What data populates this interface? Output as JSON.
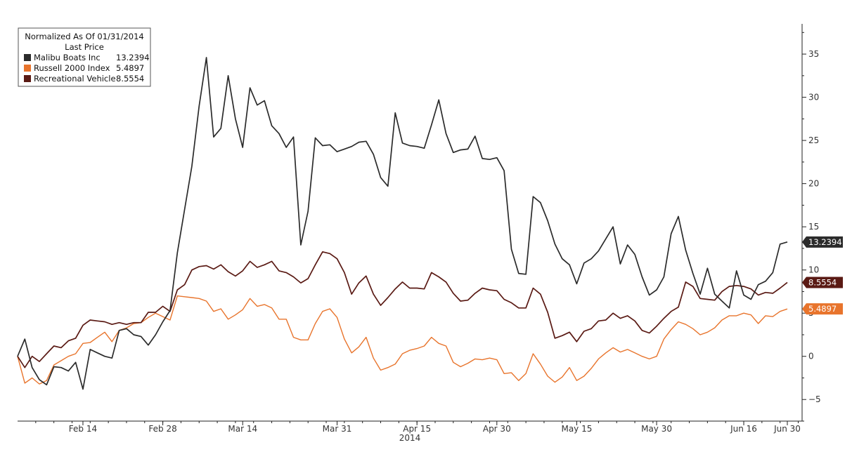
{
  "chart_data": {
    "type": "line",
    "xlabel": "2014",
    "x_ticks": [
      "Feb 14",
      "Feb 28",
      "Mar 14",
      "Mar 31",
      "Apr 15",
      "Apr 30",
      "May 15",
      "May 30",
      "Jun 16",
      "Jun 30"
    ],
    "y_ticks": [
      -5,
      0,
      5,
      10,
      15,
      20,
      25,
      30,
      35
    ],
    "ylim": [
      -7.5,
      38.5
    ],
    "grid": false,
    "legend": {
      "placement": "top-left",
      "title": "Normalized As Of 01/31/2014",
      "subtitle": "Last Price"
    },
    "series": [
      {
        "name": "Malibu Boats Inc",
        "last_label": "13.2394",
        "color": "#2b2b2b",
        "values": [
          0,
          2.0,
          -1.3,
          -2.7,
          -3.3,
          -1.2,
          -1.3,
          -1.7,
          -0.7,
          -3.8,
          0.8,
          0.4,
          0.0,
          -0.2,
          3.0,
          3.2,
          2.5,
          2.3,
          1.3,
          2.5,
          4.0,
          5.3,
          12.0,
          17.0,
          22.0,
          29.0,
          34.6,
          25.4,
          26.4,
          32.5,
          27.5,
          24.2,
          31.1,
          29.1,
          29.6,
          26.7,
          25.8,
          24.2,
          25.4,
          12.9,
          16.8,
          25.3,
          24.4,
          24.5,
          23.7,
          24.0,
          24.3,
          24.8,
          24.9,
          23.4,
          20.7,
          19.7,
          28.2,
          24.7,
          24.4,
          24.3,
          24.1,
          26.8,
          29.7,
          25.8,
          23.6,
          23.9,
          24.0,
          25.5,
          22.9,
          22.8,
          23.0,
          21.5,
          12.4,
          9.6,
          9.5,
          18.5,
          17.8,
          15.7,
          13.0,
          11.3,
          10.6,
          8.4,
          10.8,
          11.3,
          12.2,
          13.6,
          15.0,
          10.7,
          12.9,
          11.8,
          9.2,
          7.1,
          7.7,
          9.2,
          14.2,
          16.2,
          12.3,
          9.6,
          7.2,
          10.2,
          7.2,
          6.4,
          5.6,
          9.9,
          7.1,
          6.6,
          8.3,
          8.7,
          9.7,
          13.0,
          13.2394
        ]
      },
      {
        "name": "Russell 2000 Index",
        "last_label": "5.4897",
        "color": "#e8742c",
        "values": [
          0,
          -3.1,
          -2.5,
          -3.2,
          -2.8,
          -1.0,
          -0.5,
          0.0,
          0.3,
          1.5,
          1.6,
          2.2,
          2.8,
          1.7,
          3.0,
          3.3,
          3.8,
          3.9,
          4.5,
          5.0,
          4.6,
          4.2,
          7.0,
          6.9,
          6.8,
          6.7,
          6.4,
          5.2,
          5.5,
          4.3,
          4.8,
          5.4,
          6.7,
          5.8,
          6.0,
          5.6,
          4.3,
          4.3,
          2.2,
          1.9,
          1.9,
          3.8,
          5.2,
          5.5,
          4.5,
          2.0,
          0.4,
          1.1,
          2.2,
          -0.2,
          -1.6,
          -1.3,
          -0.9,
          0.3,
          0.7,
          0.9,
          1.2,
          2.2,
          1.5,
          1.2,
          -0.7,
          -1.2,
          -0.8,
          -0.3,
          -0.4,
          -0.2,
          -0.4,
          -2.0,
          -1.9,
          -2.8,
          -2.0,
          0.3,
          -0.9,
          -2.3,
          -3.0,
          -2.4,
          -1.3,
          -2.8,
          -2.3,
          -1.4,
          -0.3,
          0.4,
          1.0,
          0.5,
          0.8,
          0.4,
          0.0,
          -0.3,
          0.0,
          2.0,
          3.1,
          4.0,
          3.7,
          3.2,
          2.5,
          2.8,
          3.3,
          4.2,
          4.7,
          4.7,
          5.0,
          4.8,
          3.8,
          4.7,
          4.6,
          5.2,
          5.4897
        ]
      },
      {
        "name": "Recreational Vehicle",
        "last_label": "8.5554",
        "color": "#5a1a14",
        "values": [
          0,
          -1.3,
          0.0,
          -0.6,
          0.3,
          1.2,
          1.0,
          1.8,
          2.1,
          3.6,
          4.2,
          4.1,
          4.0,
          3.7,
          3.9,
          3.7,
          3.9,
          3.9,
          5.1,
          5.1,
          5.8,
          5.2,
          7.7,
          8.3,
          10.0,
          10.4,
          10.5,
          10.1,
          10.6,
          9.8,
          9.3,
          9.9,
          11.0,
          10.3,
          10.6,
          11.0,
          9.9,
          9.7,
          9.2,
          8.5,
          9.0,
          10.6,
          12.1,
          11.9,
          11.3,
          9.7,
          7.2,
          8.5,
          9.3,
          7.2,
          5.9,
          6.8,
          7.8,
          8.6,
          7.9,
          7.9,
          7.8,
          9.7,
          9.2,
          8.6,
          7.3,
          6.4,
          6.5,
          7.3,
          7.9,
          7.7,
          7.6,
          6.6,
          6.2,
          5.6,
          5.6,
          7.9,
          7.2,
          5.1,
          2.1,
          2.4,
          2.8,
          1.7,
          2.9,
          3.2,
          4.1,
          4.2,
          5.0,
          4.4,
          4.7,
          4.1,
          3.0,
          2.7,
          3.5,
          4.4,
          5.2,
          5.7,
          8.6,
          8.1,
          6.7,
          6.6,
          6.5,
          7.5,
          8.1,
          8.2,
          8.1,
          7.8,
          7.1,
          7.4,
          7.3,
          7.9,
          8.5554
        ]
      }
    ]
  }
}
